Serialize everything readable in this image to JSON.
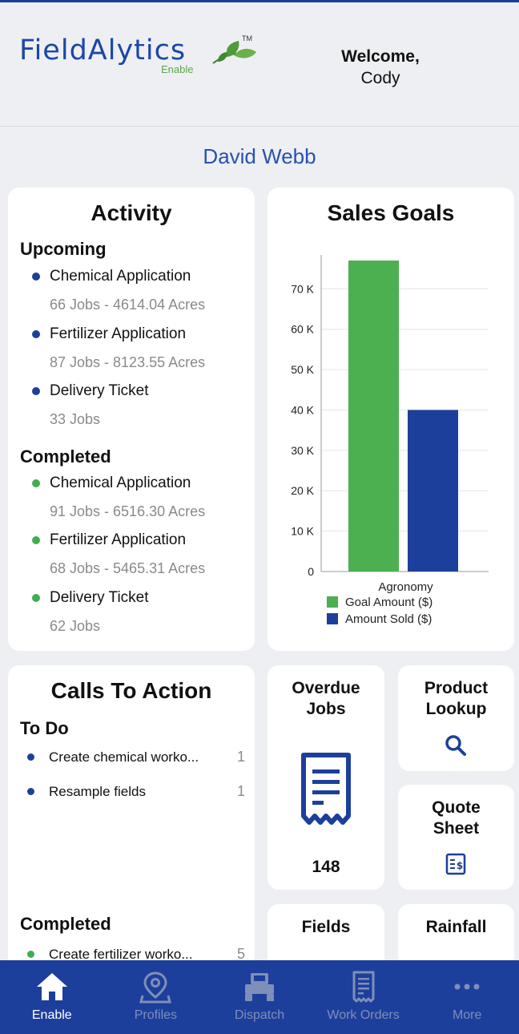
{
  "header": {
    "logo_text": "FieldAlytics",
    "logo_sub": "Enable",
    "logo_tm": "TM",
    "welcome_label": "Welcome,",
    "user_name": "Cody"
  },
  "customer_name": "David Webb",
  "activity": {
    "title": "Activity",
    "upcoming_label": "Upcoming",
    "completed_label": "Completed",
    "upcoming": [
      {
        "name": "Chemical Application",
        "detail": "66 Jobs - 4614.04 Acres"
      },
      {
        "name": "Fertilizer Application",
        "detail": "87 Jobs - 8123.55 Acres"
      },
      {
        "name": "Delivery Ticket",
        "detail": "33 Jobs"
      }
    ],
    "completed": [
      {
        "name": "Chemical Application",
        "detail": "91 Jobs - 6516.30 Acres"
      },
      {
        "name": "Fertilizer Application",
        "detail": "68 Jobs - 5465.31 Acres"
      },
      {
        "name": "Delivery Ticket",
        "detail": "62 Jobs"
      }
    ]
  },
  "sales_goals": {
    "title": "Sales Goals"
  },
  "chart_data": {
    "type": "bar",
    "title": "Sales Goals",
    "categories": [
      "Agronomy"
    ],
    "series": [
      {
        "name": "Goal Amount ($)",
        "values": [
          77000
        ],
        "color": "#4caf50"
      },
      {
        "name": "Amount Sold ($)",
        "values": [
          40000
        ],
        "color": "#1d3f9c"
      }
    ],
    "yticks": [
      "0",
      "10 K",
      "20 K",
      "30 K",
      "40 K",
      "50 K",
      "60 K",
      "70 K"
    ],
    "ylim": [
      0,
      78000
    ],
    "grid": true,
    "legend": "bottom"
  },
  "calls_to_action": {
    "title": "Calls To Action",
    "todo_label": "To Do",
    "completed_label": "Completed",
    "todo": [
      {
        "text": "Create chemical worko...",
        "count": "1"
      },
      {
        "text": "Resample fields",
        "count": "1"
      }
    ],
    "completed": [
      {
        "text": "Create fertilizer worko...",
        "count": "5"
      }
    ]
  },
  "tiles": {
    "overdue_title": "Overdue Jobs",
    "overdue_count": "148",
    "product_title": "Product Lookup",
    "quote_title": "Quote Sheet",
    "fields_title": "Fields",
    "rainfall_title": "Rainfall"
  },
  "tabbar": {
    "items": [
      {
        "label": "Enable",
        "icon": "home-icon",
        "active": true
      },
      {
        "label": "Profiles",
        "icon": "map-pin-icon",
        "active": false
      },
      {
        "label": "Dispatch",
        "icon": "tractor-icon",
        "active": false
      },
      {
        "label": "Work Orders",
        "icon": "receipt-icon",
        "active": false
      },
      {
        "label": "More",
        "icon": "more-icon",
        "active": false
      }
    ]
  },
  "colors": {
    "brand_blue": "#1d3f9c",
    "goal_green": "#4caf50",
    "background": "#eeeff3"
  }
}
